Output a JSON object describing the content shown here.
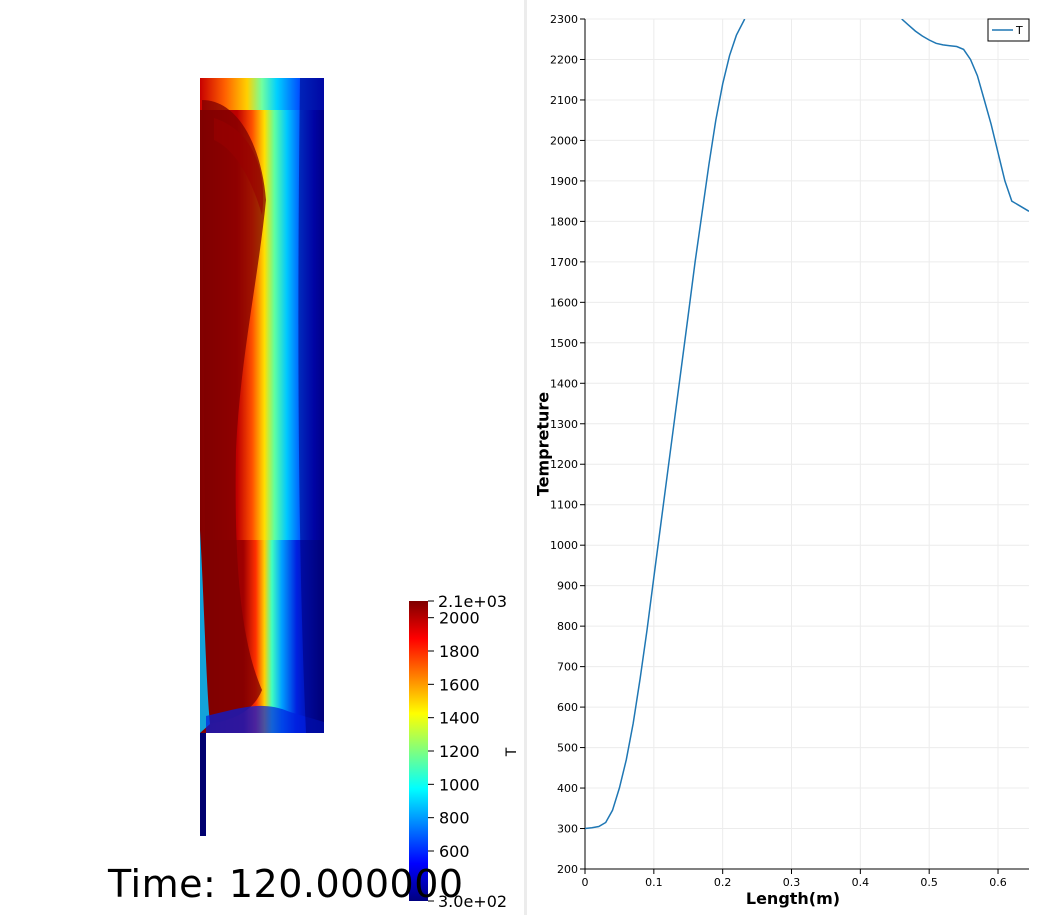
{
  "render_view": {
    "scalar_bar": {
      "title": "T",
      "max_label": "2.1e+03",
      "min_label": "3.0e+02",
      "range": [
        300,
        2100
      ],
      "ticks": [
        {
          "value": 2000,
          "label": "2000"
        },
        {
          "value": 1800,
          "label": "1800"
        },
        {
          "value": 1600,
          "label": "1600"
        },
        {
          "value": 1400,
          "label": "1400"
        },
        {
          "value": 1200,
          "label": "1200"
        },
        {
          "value": 1000,
          "label": "1000"
        },
        {
          "value": 800,
          "label": "800"
        },
        {
          "value": 600,
          "label": "600"
        }
      ],
      "colormap": "jet",
      "colors": [
        "#00007f",
        "#0000ff",
        "#007fff",
        "#00ffff",
        "#7fff7f",
        "#ffff00",
        "#ff7f00",
        "#ff0000",
        "#7f0000"
      ]
    },
    "time_text": "Time: 120.000000"
  },
  "chart_data": {
    "type": "line",
    "xlabel": "Length(m)",
    "ylabel": "Tempreture",
    "xlim": [
      0,
      0.645
    ],
    "ylim": [
      200,
      2300
    ],
    "xticks": [
      0,
      0.1,
      0.2,
      0.3,
      0.4,
      0.5,
      0.6
    ],
    "xtick_labels": [
      "0",
      "0.1",
      "0.2",
      "0.3",
      "0.4",
      "0.5",
      "0.6"
    ],
    "yticks": [
      200,
      300,
      400,
      500,
      600,
      700,
      800,
      900,
      1000,
      1100,
      1200,
      1300,
      1400,
      1500,
      1600,
      1700,
      1800,
      1900,
      2000,
      2100,
      2200,
      2300
    ],
    "grid": true,
    "legend": "top-right",
    "series": [
      {
        "name": "T",
        "color": "#1f77b4",
        "x": [
          0,
          0.01,
          0.02,
          0.03,
          0.04,
          0.05,
          0.06,
          0.07,
          0.08,
          0.09,
          0.1,
          0.11,
          0.12,
          0.13,
          0.14,
          0.15,
          0.16,
          0.17,
          0.18,
          0.19,
          0.2,
          0.21,
          0.22,
          0.232,
          0.46,
          0.47,
          0.48,
          0.49,
          0.5,
          0.51,
          0.52,
          0.53,
          0.54,
          0.55,
          0.56,
          0.57,
          0.58,
          0.59,
          0.6,
          0.61,
          0.62,
          0.63,
          0.645
        ],
        "y": [
          300,
          302,
          305,
          315,
          345,
          400,
          470,
          560,
          670,
          790,
          920,
          1050,
          1180,
          1310,
          1440,
          1570,
          1700,
          1820,
          1940,
          2050,
          2140,
          2210,
          2260,
          2300,
          2300,
          2285,
          2270,
          2258,
          2248,
          2240,
          2236,
          2234,
          2232,
          2225,
          2200,
          2160,
          2100,
          2040,
          1970,
          1900,
          1850,
          1840,
          1825
        ]
      }
    ]
  }
}
